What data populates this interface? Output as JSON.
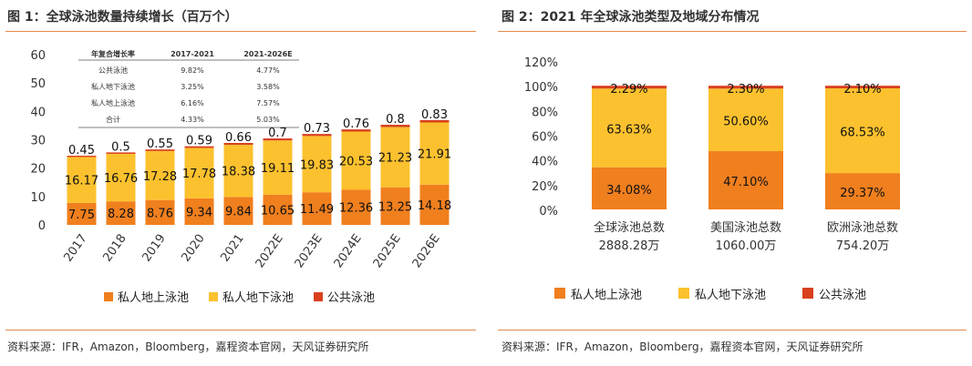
{
  "left": {
    "title": "图 1：全球泳池数量持续增长（百万个）",
    "source": "资料来源：IFR，Amazon，Bloomberg，嘉程资本官网，天风证券研究所",
    "table": {
      "header": [
        "年复合增长率",
        "2017-2021",
        "2021-2026E"
      ],
      "rows": [
        [
          "公共泳池",
          "9.82%",
          "4.77%"
        ],
        [
          "私人地下泳池",
          "3.25%",
          "3.58%"
        ],
        [
          "私人地上泳池",
          "6.16%",
          "7.57%"
        ],
        [
          "合计",
          "4.33%",
          "5.03%"
        ]
      ]
    }
  },
  "right": {
    "title": "图 2：2021 年全球泳池类型及地域分布情况",
    "source": "资料来源：IFR，Amazon，Bloomberg，嘉程资本官网，天风证券研究所"
  },
  "colors": {
    "above": "#f07f1e",
    "underground": "#fcc12e",
    "public": "#d9401e",
    "rule": "#e58a4b"
  },
  "chart_data": [
    {
      "type": "bar",
      "stacked": true,
      "title": "图 1：全球泳池数量持续增长（百万个）",
      "categories": [
        "2017",
        "2018",
        "2019",
        "2020",
        "2021",
        "2022E",
        "2023E",
        "2024E",
        "2025E",
        "2026E"
      ],
      "series": [
        {
          "name": "私人地上泳池",
          "values": [
            7.75,
            8.28,
            8.76,
            9.34,
            9.84,
            10.65,
            11.49,
            12.36,
            13.25,
            14.18
          ]
        },
        {
          "name": "私人地下泳池",
          "values": [
            16.17,
            16.76,
            17.28,
            17.78,
            18.38,
            19.11,
            19.83,
            20.53,
            21.23,
            21.91
          ]
        },
        {
          "name": "公共泳池",
          "values": [
            0.45,
            0.5,
            0.55,
            0.59,
            0.66,
            0.7,
            0.73,
            0.76,
            0.8,
            0.83
          ]
        }
      ],
      "yticks": [
        "0",
        "10",
        "20",
        "30",
        "40",
        "50",
        "60"
      ],
      "ylim": [
        0,
        60
      ],
      "legend": "bottom"
    },
    {
      "type": "bar",
      "stacked": true,
      "percent": true,
      "title": "图 2：2021 年全球泳池类型及地域分布情况",
      "categories": [
        "全球泳池总数",
        "美国泳池总数",
        "欧洲泳池总数"
      ],
      "category_sublabels": [
        "2888.28万",
        "1060.00万",
        "754.20万"
      ],
      "series": [
        {
          "name": "私人地上泳池",
          "values": [
            34.08,
            47.1,
            29.37
          ],
          "labels": [
            "34.08%",
            "47.10%",
            "29.37%"
          ]
        },
        {
          "name": "私人地下泳池",
          "values": [
            63.63,
            50.6,
            68.53
          ],
          "labels": [
            "63.63%",
            "50.60%",
            "68.53%"
          ]
        },
        {
          "name": "公共泳池",
          "values": [
            2.29,
            2.3,
            2.1
          ],
          "labels": [
            "2.29%",
            "2.30%",
            "2.10%"
          ]
        }
      ],
      "yticks": [
        "0%",
        "20%",
        "40%",
        "60%",
        "80%",
        "100%",
        "120%"
      ],
      "ylim": [
        0,
        120
      ],
      "legend": "bottom"
    }
  ]
}
